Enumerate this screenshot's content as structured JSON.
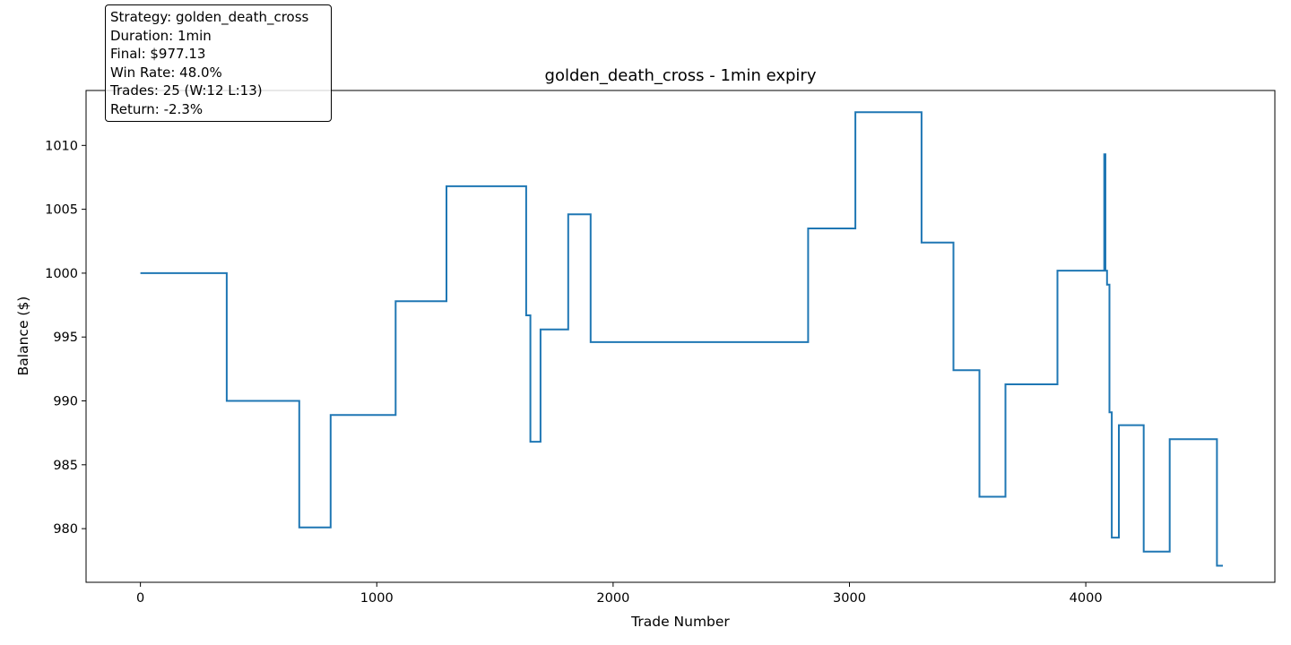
{
  "chart_data": {
    "type": "line",
    "title": "golden_death_cross - 1min expiry",
    "xlabel": "Trade Number",
    "ylabel": "Balance ($)",
    "xlim": [
      -230,
      4800
    ],
    "ylim": [
      975.8,
      1014.3
    ],
    "x_ticks": [
      0,
      1000,
      2000,
      3000,
      4000
    ],
    "x_tick_labels": [
      "0",
      "1000",
      "2000",
      "3000",
      "4000"
    ],
    "y_ticks": [
      980,
      985,
      990,
      995,
      1000,
      1005,
      1010
    ],
    "y_tick_labels": [
      "980",
      "985",
      "990",
      "995",
      "1000",
      "1005",
      "1010"
    ],
    "grid": false,
    "line_style": "step",
    "series": [
      {
        "color": "#1f77b4",
        "steps": [
          [
            0,
            1000.0
          ],
          [
            365,
            990.0
          ],
          [
            672,
            980.1
          ],
          [
            805,
            988.9
          ],
          [
            1080,
            997.8
          ],
          [
            1295,
            1006.8
          ],
          [
            1632,
            996.7
          ],
          [
            1650,
            986.8
          ],
          [
            1693,
            995.6
          ],
          [
            1810,
            1004.6
          ],
          [
            1905,
            994.6
          ],
          [
            2825,
            1003.5
          ],
          [
            3025,
            1012.6
          ],
          [
            3305,
            1002.4
          ],
          [
            3440,
            992.4
          ],
          [
            3550,
            982.5
          ],
          [
            3660,
            991.3
          ],
          [
            3880,
            1000.2
          ],
          [
            4078,
            1009.3
          ],
          [
            4083,
            1000.2
          ],
          [
            4090,
            999.1
          ],
          [
            4100,
            989.1
          ],
          [
            4110,
            979.3
          ],
          [
            4140,
            988.1
          ],
          [
            4245,
            978.2
          ],
          [
            4355,
            987.0
          ],
          [
            4555,
            977.1
          ],
          [
            4580,
            977.1
          ]
        ]
      }
    ],
    "annotation": {
      "position": "top-left",
      "lines": [
        "Strategy: golden_death_cross",
        "Duration: 1min",
        "Final: $977.13",
        "Win Rate: 48.0%",
        "Trades: 25 (W:12 L:13)",
        "Return: -2.3%"
      ]
    }
  }
}
